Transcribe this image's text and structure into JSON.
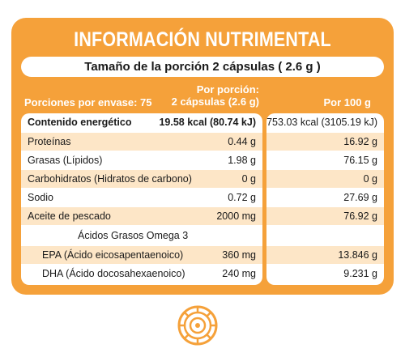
{
  "label": {
    "title": "INFORMACIÓN NUTRIMENTAL",
    "serving_size": "Tamaño de la porción 2 cápsulas ( 2.6 g )",
    "servings_per_container": "Porciones por envase: 75",
    "col_per_serving_line1": "Por porción:",
    "col_per_serving_line2": "2 cápsulas (2.6 g)",
    "col_per_100g": "Por 100 g",
    "rows": [
      {
        "name": "Contenido energético",
        "per_serving": "19.58 kcal (80.74 kJ)",
        "per_100g": "753.03 kcal (3105.19 kJ)"
      },
      {
        "name": "Proteínas",
        "per_serving": "0.44 g",
        "per_100g": "16.92 g"
      },
      {
        "name": "Grasas (Lípidos)",
        "per_serving": "1.98 g",
        "per_100g": "76.15 g"
      },
      {
        "name": "Carbohidratos (Hidratos de carbono)",
        "per_serving": "0 g",
        "per_100g": "0 g"
      },
      {
        "name": "Sodio",
        "per_serving": "0.72 g",
        "per_100g": "27.69 g"
      },
      {
        "name": "Aceite de pescado",
        "per_serving": "2000 mg",
        "per_100g": "76.92 g"
      },
      {
        "name": "Ácidos Grasos Omega 3",
        "per_serving": "",
        "per_100g": ""
      },
      {
        "name": "EPA (Ácido eicosapentaenoico)",
        "per_serving": "360 mg",
        "per_100g": "13.846 g"
      },
      {
        "name": "DHA (Ácido docosahexaenoico)",
        "per_serving": "240 mg",
        "per_100g": "9.231 g"
      }
    ]
  },
  "colors": {
    "accent": "#f5a13a",
    "row_shade": "#fde6c7",
    "text": "#1a1a1a"
  },
  "logo": {
    "icon": "circular-target-logo-icon"
  }
}
